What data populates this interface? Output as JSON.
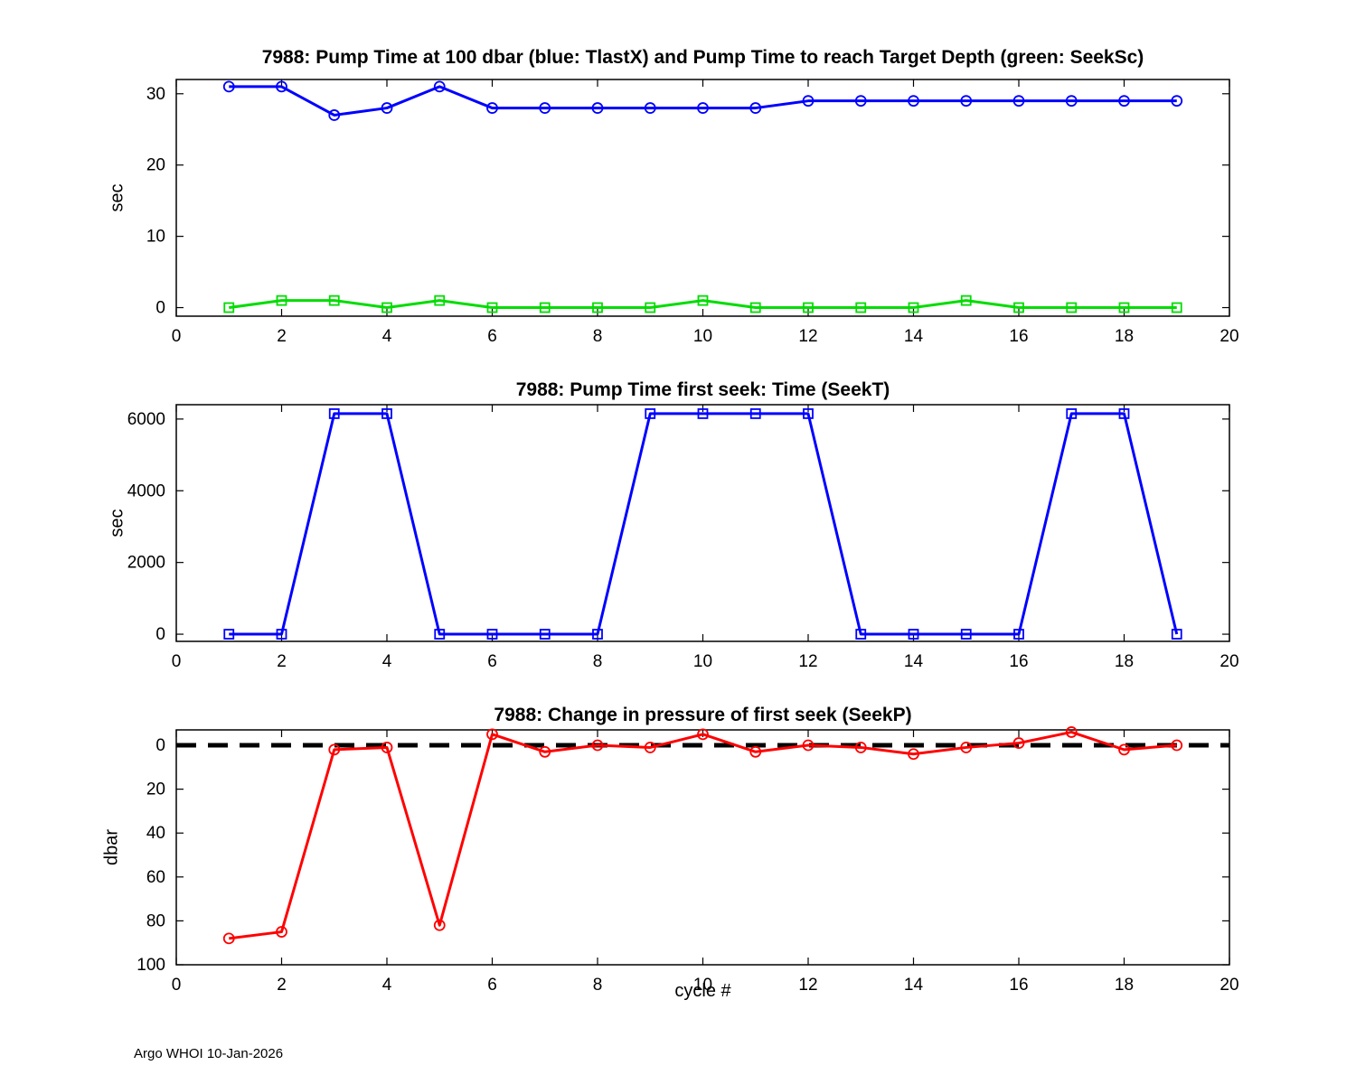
{
  "figure": {
    "footer": "Argo WHOI 10-Jan-2026",
    "background": "#FFFFFF"
  },
  "chart_data": [
    {
      "type": "line",
      "title": "7988:  Pump Time at 100 dbar (blue: TlastX) and Pump Time to reach Target Depth (green: SeekSc)",
      "ylabel": "sec",
      "xlabel": "",
      "grid": false,
      "legend": "none",
      "xlim": [
        0,
        20
      ],
      "ylim": [
        -1.2,
        32
      ],
      "xticks": [
        0,
        2,
        4,
        6,
        8,
        10,
        12,
        14,
        16,
        18,
        20
      ],
      "yticks": [
        0,
        10,
        20,
        30
      ],
      "x": [
        1,
        2,
        3,
        4,
        5,
        6,
        7,
        8,
        9,
        10,
        11,
        12,
        13,
        14,
        15,
        16,
        17,
        18,
        19
      ],
      "series": [
        {
          "name": "TlastX",
          "color": "#0000FF",
          "marker": "circle",
          "values": [
            31,
            31,
            27,
            28,
            31,
            28,
            28,
            28,
            28,
            28,
            28,
            29,
            29,
            29,
            29,
            29,
            29,
            29,
            29
          ]
        },
        {
          "name": "SeekSc",
          "color": "#00DC00",
          "marker": "square",
          "values": [
            0,
            1,
            1,
            0,
            1,
            0,
            0,
            0,
            0,
            1,
            0,
            0,
            0,
            0,
            1,
            0,
            0,
            0,
            0
          ]
        }
      ]
    },
    {
      "type": "line",
      "title": "7988: Pump Time first seek: Time (SeekT)",
      "ylabel": "sec",
      "xlabel": "",
      "grid": false,
      "legend": "none",
      "xlim": [
        0,
        20
      ],
      "ylim": [
        -200,
        6400
      ],
      "xticks": [
        0,
        2,
        4,
        6,
        8,
        10,
        12,
        14,
        16,
        18,
        20
      ],
      "yticks": [
        0,
        2000,
        4000,
        6000
      ],
      "x": [
        1,
        2,
        3,
        4,
        5,
        6,
        7,
        8,
        9,
        10,
        11,
        12,
        13,
        14,
        15,
        16,
        17,
        18,
        19
      ],
      "series": [
        {
          "name": "SeekT",
          "color": "#0000FF",
          "marker": "square",
          "values": [
            0,
            0,
            6150,
            6150,
            0,
            0,
            0,
            0,
            6150,
            6150,
            6150,
            6150,
            0,
            0,
            0,
            0,
            6150,
            6150,
            0
          ]
        }
      ]
    },
    {
      "type": "line",
      "title": "7988: Change in pressure of first seek (SeekP)",
      "ylabel": "dbar",
      "xlabel": "cycle #",
      "grid": false,
      "legend": "none",
      "xlim": [
        0,
        20
      ],
      "ylim": [
        -7,
        100
      ],
      "yreverse": true,
      "refline_y": 0,
      "refline_color": "#000000",
      "xticks": [
        0,
        2,
        4,
        6,
        8,
        10,
        12,
        14,
        16,
        18,
        20
      ],
      "yticks": [
        0,
        20,
        40,
        60,
        80,
        100
      ],
      "x": [
        1,
        2,
        3,
        4,
        5,
        6,
        7,
        8,
        9,
        10,
        11,
        12,
        13,
        14,
        15,
        16,
        17,
        18,
        19
      ],
      "series": [
        {
          "name": "SeekP",
          "color": "#FF0000",
          "marker": "circle",
          "values": [
            88,
            85,
            2,
            1,
            82,
            -5,
            3,
            0,
            1,
            -5,
            3,
            0,
            1,
            4,
            1,
            -1,
            -6,
            2,
            0
          ]
        }
      ]
    }
  ]
}
